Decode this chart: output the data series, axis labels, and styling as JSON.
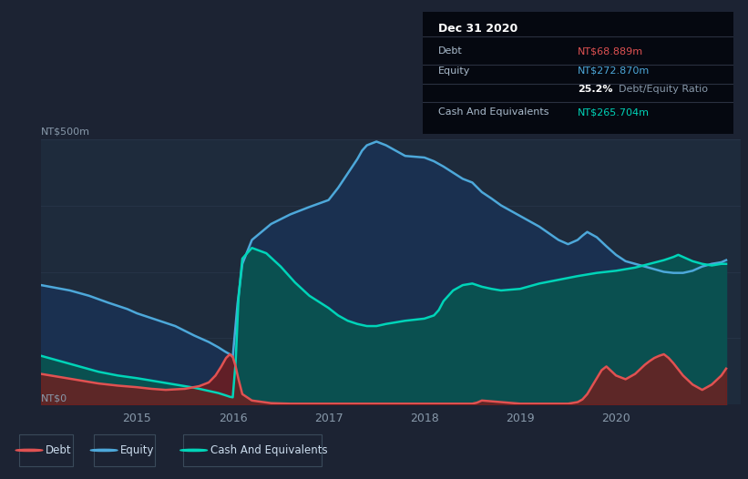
{
  "bg_color": "#1c2333",
  "plot_bg_color": "#1e2b3c",
  "grid_color": "#263447",
  "xlim": [
    2014.0,
    2021.3
  ],
  "ylim": [
    0,
    500
  ],
  "yticks": [
    0,
    125,
    250,
    375,
    500
  ],
  "xtick_labels": [
    "2015",
    "2016",
    "2017",
    "2018",
    "2019",
    "2020"
  ],
  "xtick_positions": [
    2015,
    2016,
    2017,
    2018,
    2019,
    2020
  ],
  "ylabel_top": "NT$500m",
  "ylabel_bottom": "NT$0",
  "debt_color": "#e05252",
  "equity_color": "#4da8da",
  "cash_color": "#00d4b8",
  "debt_fill_color": "#7a1a1a",
  "equity_fill_color": "#1a3050",
  "cash_fill_color": "#0a5050",
  "legend_items": [
    {
      "label": "Debt",
      "color": "#e05252"
    },
    {
      "label": "Equity",
      "color": "#4da8da"
    },
    {
      "label": "Cash And Equivalents",
      "color": "#00d4b8"
    }
  ],
  "info_box": {
    "title": "Dec 31 2020",
    "rows": [
      {
        "label": "Debt",
        "value": "NT$68.889m",
        "value_color": "#e05252"
      },
      {
        "label": "Equity",
        "value": "NT$272.870m",
        "value_color": "#4da8da"
      },
      {
        "label": "",
        "value_bold": "25.2%",
        "value_rest": " Debt/Equity Ratio"
      },
      {
        "label": "Cash And Equivalents",
        "value": "NT$265.704m",
        "value_color": "#00d4b8"
      }
    ]
  },
  "x_equity": [
    2014.0,
    2014.15,
    2014.3,
    2014.5,
    2014.7,
    2014.9,
    2015.0,
    2015.2,
    2015.4,
    2015.6,
    2015.75,
    2015.85,
    2015.92,
    2015.97,
    2016.0,
    2016.05,
    2016.1,
    2016.2,
    2016.4,
    2016.6,
    2016.8,
    2017.0,
    2017.1,
    2017.2,
    2017.3,
    2017.35,
    2017.4,
    2017.5,
    2017.6,
    2017.7,
    2017.8,
    2018.0,
    2018.1,
    2018.2,
    2018.4,
    2018.5,
    2018.6,
    2018.7,
    2018.8,
    2019.0,
    2019.1,
    2019.2,
    2019.4,
    2019.5,
    2019.6,
    2019.65,
    2019.7,
    2019.8,
    2019.9,
    2020.0,
    2020.1,
    2020.2,
    2020.3,
    2020.4,
    2020.5,
    2020.6,
    2020.7,
    2020.8,
    2020.9,
    2021.0,
    2021.1,
    2021.15
  ],
  "y_equity": [
    225,
    220,
    215,
    205,
    192,
    180,
    172,
    160,
    148,
    130,
    118,
    108,
    100,
    95,
    90,
    190,
    265,
    310,
    340,
    358,
    372,
    385,
    408,
    435,
    462,
    478,
    488,
    495,
    488,
    478,
    468,
    465,
    458,
    448,
    425,
    418,
    400,
    388,
    375,
    355,
    345,
    335,
    310,
    302,
    310,
    318,
    325,
    315,
    298,
    282,
    270,
    265,
    260,
    255,
    250,
    248,
    248,
    252,
    260,
    265,
    268,
    272
  ],
  "x_cash": [
    2014.0,
    2014.2,
    2014.4,
    2014.6,
    2014.8,
    2015.0,
    2015.2,
    2015.4,
    2015.6,
    2015.75,
    2015.85,
    2015.92,
    2015.97,
    2016.0,
    2016.03,
    2016.06,
    2016.1,
    2016.2,
    2016.35,
    2016.5,
    2016.65,
    2016.8,
    2017.0,
    2017.1,
    2017.2,
    2017.3,
    2017.4,
    2017.5,
    2017.6,
    2017.8,
    2018.0,
    2018.1,
    2018.15,
    2018.2,
    2018.3,
    2018.4,
    2018.5,
    2018.6,
    2018.7,
    2018.8,
    2019.0,
    2019.2,
    2019.4,
    2019.6,
    2019.8,
    2020.0,
    2020.2,
    2020.35,
    2020.5,
    2020.6,
    2020.65,
    2020.7,
    2020.8,
    2020.9,
    2021.0,
    2021.1,
    2021.15
  ],
  "y_cash": [
    92,
    82,
    72,
    62,
    55,
    50,
    44,
    38,
    32,
    26,
    22,
    18,
    15,
    14,
    80,
    200,
    275,
    295,
    285,
    260,
    230,
    205,
    182,
    168,
    158,
    152,
    148,
    148,
    152,
    158,
    162,
    168,
    178,
    195,
    215,
    225,
    228,
    222,
    218,
    215,
    218,
    228,
    235,
    242,
    248,
    252,
    258,
    265,
    272,
    278,
    282,
    278,
    270,
    265,
    262,
    265,
    265
  ],
  "x_debt": [
    2014.0,
    2014.2,
    2014.4,
    2014.6,
    2014.8,
    2015.0,
    2015.15,
    2015.3,
    2015.5,
    2015.65,
    2015.75,
    2015.82,
    2015.88,
    2015.93,
    2015.97,
    2016.0,
    2016.03,
    2016.06,
    2016.1,
    2016.2,
    2016.4,
    2016.6,
    2017.0,
    2017.5,
    2018.0,
    2018.5,
    2018.55,
    2018.6,
    2019.0,
    2019.5,
    2019.6,
    2019.65,
    2019.7,
    2019.75,
    2019.8,
    2019.85,
    2019.9,
    2020.0,
    2020.1,
    2020.2,
    2020.3,
    2020.35,
    2020.4,
    2020.45,
    2020.5,
    2020.55,
    2020.6,
    2020.7,
    2020.8,
    2020.9,
    2021.0,
    2021.1,
    2021.15
  ],
  "y_debt": [
    58,
    52,
    46,
    40,
    36,
    33,
    30,
    28,
    30,
    35,
    42,
    55,
    72,
    88,
    95,
    90,
    72,
    48,
    20,
    8,
    3,
    2,
    2,
    2,
    2,
    2,
    4,
    8,
    2,
    2,
    5,
    10,
    20,
    35,
    50,
    65,
    72,
    55,
    48,
    58,
    75,
    82,
    88,
    92,
    95,
    88,
    78,
    55,
    38,
    28,
    38,
    55,
    68
  ]
}
